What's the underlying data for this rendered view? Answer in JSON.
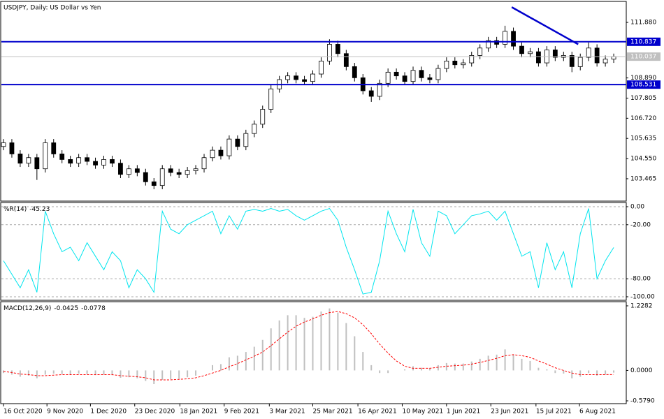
{
  "chart_data": [
    {
      "type": "candlestick",
      "title": "USDJPY, Daily:  US Dollar vs Yen",
      "xlim": [
        -0.25,
        74.5
      ],
      "ylim": [
        102.26,
        113.01
      ],
      "yticks": [
        {
          "value": 111.88,
          "label": "111.880"
        },
        {
          "value": 108.89,
          "label": "108.890"
        },
        {
          "value": 107.805,
          "label": "107.805"
        },
        {
          "value": 106.72,
          "label": "106.720"
        },
        {
          "value": 105.635,
          "label": "105.635"
        },
        {
          "value": 104.55,
          "label": "104.550"
        },
        {
          "value": 103.465,
          "label": "103.465"
        }
      ],
      "up_color": "#ffffff",
      "down_color": "#000000",
      "outline_color": "#000000",
      "open": [
        105.2,
        105.4,
        104.8,
        104.3,
        104.6,
        104.0,
        105.4,
        104.8,
        104.5,
        104.3,
        104.6,
        104.4,
        104.2,
        104.5,
        104.3,
        103.7,
        104.0,
        103.8,
        103.3,
        103.1,
        104.0,
        103.8,
        103.7,
        103.9,
        104.0,
        104.6,
        105.0,
        104.7,
        105.6,
        105.2,
        105.9,
        106.4,
        107.2,
        108.3,
        108.8,
        109.0,
        108.8,
        108.7,
        109.1,
        109.8,
        110.7,
        110.2,
        109.5,
        108.9,
        108.2,
        107.9,
        108.6,
        109.2,
        109.0,
        108.7,
        109.3,
        108.9,
        108.8,
        109.4,
        109.8,
        109.6,
        109.7,
        110.1,
        110.5,
        110.9,
        110.7,
        111.4,
        110.6,
        110.2,
        110.3,
        109.7,
        110.4,
        110.0,
        110.1,
        109.5,
        110.0,
        110.5,
        109.7,
        109.9
      ],
      "high": [
        105.6,
        105.6,
        105.0,
        104.8,
        104.8,
        105.6,
        105.6,
        105.0,
        104.7,
        104.8,
        104.8,
        104.6,
        104.7,
        104.7,
        104.5,
        104.2,
        104.2,
        104.0,
        103.5,
        104.2,
        104.2,
        104.0,
        104.1,
        104.2,
        104.8,
        105.2,
        105.2,
        105.8,
        105.8,
        106.1,
        106.6,
        107.4,
        108.5,
        109.0,
        109.2,
        109.2,
        109.0,
        109.3,
        110.0,
        110.97,
        110.9,
        110.4,
        109.7,
        109.1,
        108.4,
        108.8,
        109.4,
        109.4,
        109.2,
        109.5,
        109.5,
        109.1,
        109.6,
        110.0,
        110.0,
        109.9,
        110.3,
        110.7,
        111.1,
        111.1,
        111.7,
        111.6,
        110.8,
        110.5,
        110.5,
        110.6,
        110.6,
        110.3,
        110.3,
        110.2,
        110.8,
        110.7,
        110.1,
        110.2
      ],
      "low": [
        105.0,
        104.6,
        104.1,
        104.1,
        103.4,
        103.8,
        104.6,
        104.3,
        104.1,
        104.1,
        104.2,
        104.0,
        104.0,
        104.1,
        103.5,
        103.5,
        103.6,
        103.1,
        102.9,
        102.9,
        103.6,
        103.5,
        103.5,
        103.7,
        103.8,
        104.4,
        104.5,
        104.5,
        105.0,
        105.0,
        105.7,
        106.2,
        107.0,
        108.1,
        108.6,
        108.6,
        108.5,
        108.5,
        108.9,
        109.6,
        110.0,
        109.3,
        108.7,
        108.0,
        107.6,
        107.7,
        108.4,
        108.8,
        108.5,
        108.5,
        108.7,
        108.6,
        108.6,
        109.2,
        109.4,
        109.4,
        109.5,
        109.9,
        110.3,
        110.5,
        110.5,
        110.4,
        110.0,
        110.0,
        109.5,
        109.5,
        109.8,
        109.8,
        109.2,
        109.3,
        109.8,
        109.5,
        109.5,
        109.7
      ],
      "close": [
        105.4,
        104.8,
        104.3,
        104.6,
        104.0,
        105.4,
        104.8,
        104.5,
        104.3,
        104.6,
        104.4,
        104.2,
        104.5,
        104.3,
        103.7,
        104.0,
        103.8,
        103.3,
        103.1,
        104.0,
        103.8,
        103.7,
        103.9,
        104.0,
        104.6,
        105.0,
        104.7,
        105.6,
        105.2,
        105.9,
        106.4,
        107.2,
        108.3,
        108.8,
        109.0,
        108.8,
        108.7,
        109.1,
        109.8,
        110.7,
        110.2,
        109.5,
        108.9,
        108.2,
        107.9,
        108.6,
        109.2,
        109.0,
        108.7,
        109.3,
        108.9,
        108.8,
        109.4,
        109.8,
        109.6,
        109.7,
        110.1,
        110.5,
        110.9,
        110.7,
        111.4,
        110.6,
        110.2,
        110.3,
        109.7,
        110.4,
        110.0,
        110.1,
        109.5,
        110.0,
        110.5,
        109.7,
        109.9,
        110.04
      ],
      "hlines": [
        {
          "value": 110.837,
          "label": "110.837",
          "color": "#0000cc"
        },
        {
          "value": 108.531,
          "label": "108.531",
          "color": "#0000cc"
        }
      ],
      "price_line": {
        "value": 110.037,
        "label": "110.037",
        "color": "#c0c0c0"
      },
      "trendline": {
        "x": [
          60.8,
          68.75
        ],
        "y": [
          112.7,
          110.7
        ],
        "color": "#0000cc"
      }
    },
    {
      "type": "line",
      "title": "%R(14)",
      "xlim": [
        -0.25,
        74.5
      ],
      "ylim": [
        -103.9,
        4.65
      ],
      "color": "#00e5ee",
      "grid": true,
      "yticks": [
        {
          "value": 0,
          "label": "0.00"
        },
        {
          "value": -20,
          "label": "-20.00"
        },
        {
          "value": -80,
          "label": "-80.00"
        },
        {
          "value": -100,
          "label": "-100.00"
        }
      ],
      "values": [
        -60,
        -75,
        -90,
        -70,
        -95,
        -5,
        -30,
        -50,
        -45,
        -60,
        -40,
        -55,
        -70,
        -50,
        -60,
        -90,
        -70,
        -80,
        -95,
        -5,
        -25,
        -30,
        -20,
        -15,
        -10,
        -5,
        -30,
        -10,
        -25,
        -5,
        -3,
        -5,
        -2,
        -5,
        -3,
        -10,
        -15,
        -10,
        -5,
        -2,
        -15,
        -45,
        -70,
        -97,
        -95,
        -60,
        -5,
        -30,
        -50,
        -3,
        -40,
        -55,
        -5,
        -10,
        -30,
        -20,
        -10,
        -8,
        -5,
        -15,
        -5,
        -30,
        -55,
        -50,
        -90,
        -40,
        -70,
        -50,
        -90,
        -30,
        -2,
        -80,
        -60,
        -45.23
      ]
    },
    {
      "type": "macd",
      "title": "MACD(12,26,9)",
      "xlim": [
        -0.25,
        74.5
      ],
      "ylim": [
        -0.632,
        1.3075
      ],
      "yticks": [
        1.2282,
        {
          "value": 0,
          "label": "0.0000"
        },
        {
          "value": -0.579,
          "label": "-0.5790"
        }
      ],
      "xticks": [
        {
          "value": 0,
          "label": "16 Oct 2020"
        },
        {
          "value": 5.2,
          "label": "9 Nov 2020"
        },
        {
          "value": 10.4,
          "label": "1 Dec 2020"
        },
        {
          "value": 15.7,
          "label": "23 Dec 2020"
        },
        {
          "value": 21.1,
          "label": "18 Jan 2021"
        },
        {
          "value": 26.4,
          "label": "9 Feb 2021"
        },
        {
          "value": 31.8,
          "label": "3 Mar 2021"
        },
        {
          "value": 37,
          "label": "25 Mar 2021"
        },
        {
          "value": 42.4,
          "label": "16 Apr 2021"
        },
        {
          "value": 47.7,
          "label": "10 May 2021"
        },
        {
          "value": 53,
          "label": "1 Jun 2021"
        },
        {
          "value": 58.3,
          "label": "23 Jun 2021"
        },
        {
          "value": 63.7,
          "label": "15 Jul 2021"
        },
        {
          "value": 68.9,
          "label": "6 Aug 2021"
        }
      ],
      "series": [
        {
          "color": "#c0c0c0",
          "values": [
            -0.05,
            -0.08,
            -0.12,
            -0.1,
            -0.15,
            -0.08,
            -0.06,
            -0.07,
            -0.08,
            -0.06,
            -0.07,
            -0.09,
            -0.08,
            -0.09,
            -0.14,
            -0.13,
            -0.15,
            -0.2,
            -0.26,
            -0.18,
            -0.17,
            -0.16,
            -0.13,
            -0.1,
            0,
            0.1,
            0.12,
            0.25,
            0.28,
            0.35,
            0.45,
            0.58,
            0.8,
            0.95,
            1.05,
            1.05,
            1.0,
            1.02,
            1.12,
            1.18,
            1.1,
            0.9,
            0.65,
            0.35,
            0.1,
            -0.05,
            -0.05,
            0,
            0.02,
            0.08,
            0.05,
            0.04,
            0.1,
            0.14,
            0.13,
            0.13,
            0.17,
            0.22,
            0.28,
            0.3,
            0.4,
            0.3,
            0.22,
            0.18,
            0.05,
            0.02,
            -0.05,
            -0.06,
            -0.15,
            -0.12,
            -0.05,
            -0.1,
            -0.08,
            -0.0425
          ]
        },
        {
          "color": "#ff0000",
          "values": [
            -0.02,
            -0.04,
            -0.07,
            -0.08,
            -0.1,
            -0.1,
            -0.09,
            -0.08,
            -0.08,
            -0.08,
            -0.08,
            -0.08,
            -0.08,
            -0.08,
            -0.1,
            -0.11,
            -0.12,
            -0.14,
            -0.18,
            -0.18,
            -0.18,
            -0.17,
            -0.16,
            -0.14,
            -0.1,
            -0.05,
            0,
            0.07,
            0.13,
            0.2,
            0.27,
            0.35,
            0.47,
            0.6,
            0.73,
            0.84,
            0.92,
            0.98,
            1.05,
            1.1,
            1.12,
            1.08,
            1.0,
            0.87,
            0.7,
            0.5,
            0.33,
            0.18,
            0.08,
            0.04,
            0.04,
            0.04,
            0.06,
            0.08,
            0.09,
            0.1,
            0.12,
            0.15,
            0.19,
            0.23,
            0.28,
            0.3,
            0.28,
            0.25,
            0.18,
            0.12,
            0.05,
            0,
            -0.05,
            -0.08,
            -0.08,
            -0.08,
            -0.08,
            -0.0778
          ]
        }
      ]
    }
  ]
}
